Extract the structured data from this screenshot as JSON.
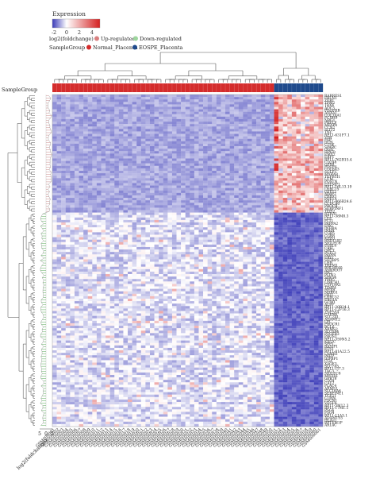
{
  "legend": {
    "title": "Expression",
    "scale_ticks": [
      "-2",
      "0",
      "2",
      "4"
    ],
    "fc_label": "log2(foldchange)",
    "fc_levels": [
      {
        "label": "Up-regulated",
        "color": "#d98080"
      },
      {
        "label": "Down-regulated",
        "color": "#9ed69e"
      }
    ],
    "group_label": "SampleGroup",
    "groups": [
      {
        "label": "Normal_Placenta",
        "color": "#d42c2c"
      },
      {
        "label": "EOSPE_Placenta",
        "color": "#1f4a8c"
      }
    ]
  },
  "annotation_row_label": "SampleGroup",
  "fc_axis": {
    "label": "log2(foldchange)",
    "ticks": [
      "5",
      "0",
      "5"
    ]
  },
  "colors": {
    "low": "#3b3bb8",
    "mid": "#ffffff",
    "high": "#d42020",
    "up_branch": "#c88888",
    "down_branch": "#55aa55",
    "tree": "#555555"
  },
  "chart_data": {
    "type": "heatmap",
    "color_range": [
      -2,
      5
    ],
    "normal_samples": [
      "GSM000001",
      "GSM000002",
      "GSM000003",
      "GSM000004",
      "GSM000005",
      "GSM000006",
      "GSM000007",
      "GSM000008",
      "GSM000009",
      "GSM000010",
      "GSM000011",
      "GSM000012",
      "GSM000013",
      "GSM000014",
      "GSM000015",
      "GSM000016",
      "GSM000017",
      "GSM000018",
      "GSM000019",
      "GSM000020",
      "GSM000021",
      "GSM000022",
      "GSM000023",
      "GSM000024",
      "GSM000025",
      "GSM000026",
      "GSM000027",
      "GSM000028",
      "GSM000029",
      "GSM000030",
      "GSM000031",
      "GSM000032",
      "GSM000033",
      "GSM000034",
      "GSM000035",
      "GSM000036",
      "GSM000037",
      "GSM000038",
      "GSM000039",
      "GSM000040",
      "GSM000041",
      "GSM000042",
      "GSM000043",
      "GSM000044",
      "GSM000045",
      "GSM000046",
      "GSM000047",
      "GSM000048",
      "GSM000049",
      "GSM000050"
    ],
    "eospe_samples": [
      "GSM000051",
      "GSM000052",
      "GSM000053",
      "GSM000054",
      "GSM000055",
      "GSM000056",
      "GSM000057",
      "GSM000058",
      "GSM000059",
      "GSM000060",
      "GSM000061"
    ],
    "up_genes": [
      "RARRES1",
      "FBLN1",
      "ZEB1",
      "TPM2",
      "TBX4",
      "AOC3",
      "PDGFRB",
      "ANXA1",
      "COL14A1",
      "PCDH9",
      "NRG1",
      "PRELP",
      "MFAP4",
      "CCN2",
      "SLIT2",
      "TNC",
      "RP11-631F7.1",
      "VIM",
      "FAP",
      "DCN",
      "CTSK",
      "SPARC",
      "OGN",
      "HPGD",
      "EMX2",
      "EBF1",
      "RP11-762B15.4",
      "CD248",
      "GPX8",
      "PDGFA",
      "COL6A3",
      "SULF1",
      "MXRA8",
      "TGFB1I1",
      "LUM",
      "POSTN",
      "EFEMP1",
      "RP11-16L13.19",
      "LRRC15",
      "GFPT2",
      "MMP2",
      "PRRX1",
      "PDE1A",
      "RP11-466B24.6",
      "CCDC80",
      "PROCR",
      "SERPINF1",
      "TFPI2"
    ],
    "down_genes": [
      "HTRA1",
      "RP11-38M8.3",
      "LEP",
      "FLT1",
      "PAPPA2",
      "ENG",
      "INHBA",
      "INHA",
      "CGB5",
      "CGB8",
      "KISS1",
      "HSD11B2",
      "SIGLEC6",
      "PVRL4",
      "CRH",
      "QPCT",
      "FSTL3",
      "PAPPA",
      "EBI3",
      "SH3BP5",
      "LHB",
      "TREM1",
      "BHLHE40",
      "ANKRD37",
      "HK2",
      "PLIN2",
      "SPAG4",
      "TPBG",
      "LIMCH1",
      "CYP19A1",
      "TIMP4",
      "HEXB",
      "NDRG1",
      "JAG1",
      "LRRC32",
      "ERO1A",
      "GCM1",
      "ALPP",
      "RP11-20B24.1",
      "RP11-12F16.3",
      "ZNF554",
      "CAPN6",
      "SLC2A1",
      "ADAM12",
      "LPL",
      "PROCR1",
      "BCL6",
      "ARMS2",
      "SLC6A4",
      "PTGER3",
      "PROS1",
      "RP11-359N5.2",
      "KIF2C",
      "SPP1",
      "RASIP1",
      "ETS1",
      "RP11-81A22.5",
      "LAMB3",
      "PAEP",
      "IGFBP1",
      "CGA",
      "XAGE3",
      "SLC7A5",
      "RP11-1J7.3",
      "TAC3",
      "SIGLEC8",
      "MYO16",
      "GPR78",
      "CD24",
      "CA12",
      "PLAC4",
      "ARMS1",
      "SLC16A6",
      "SERPINE1",
      "TCF21",
      "CUBN",
      "FSCN1",
      "VEGFA",
      "RP11-5M12.3",
      "RP11-17M1.1",
      "PSG6",
      "PSG4",
      "RP11-11A5.1",
      "ADAMTS5",
      "HLA-G",
      "RPTEM1P",
      "ARL4C"
    ]
  }
}
